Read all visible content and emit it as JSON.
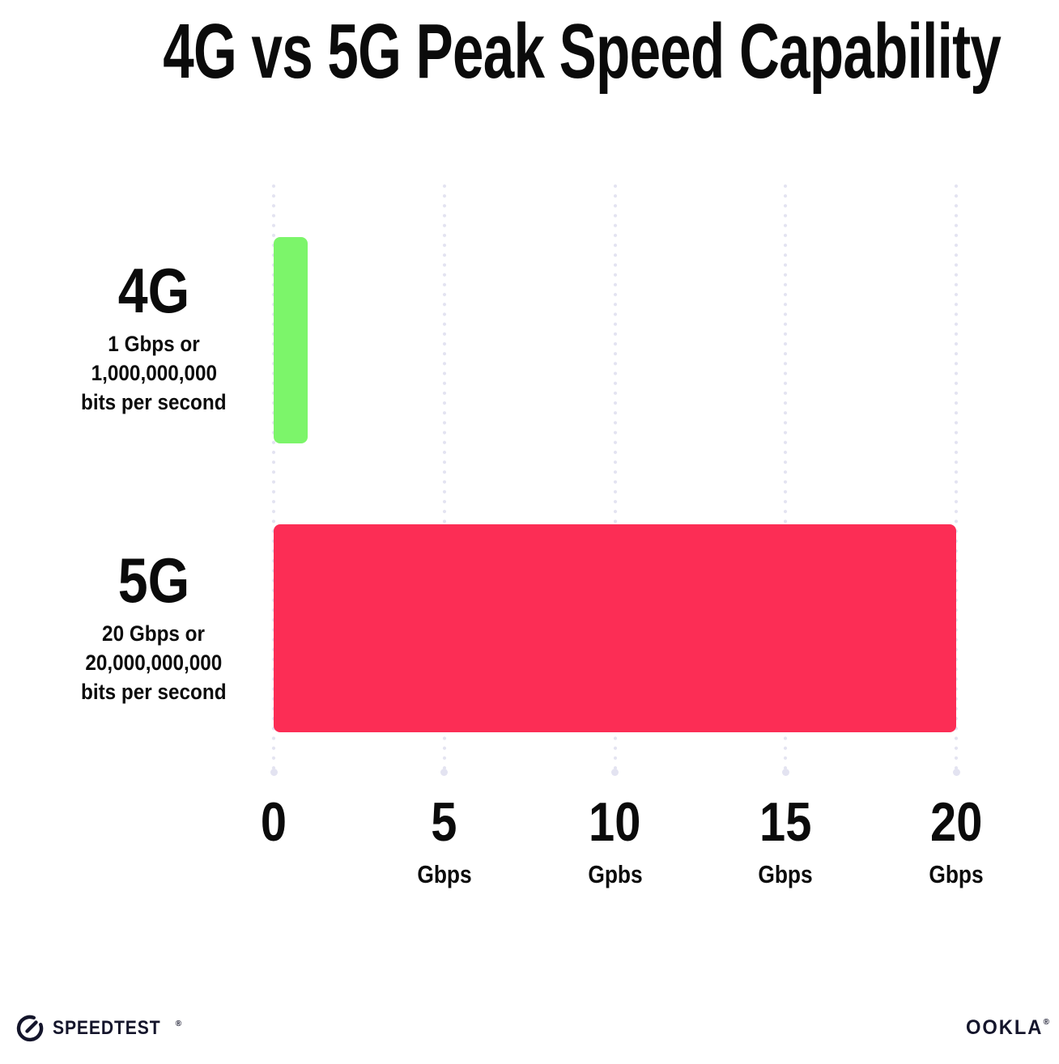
{
  "title": "4G vs 5G Peak Speed Capability",
  "chart_data": {
    "type": "bar",
    "orientation": "horizontal",
    "title": "4G vs 5G Peak Speed Capability",
    "categories": [
      "4G",
      "5G"
    ],
    "values": [
      1,
      20
    ],
    "xlabel_unit": "Gbps",
    "xlim": [
      0,
      20
    ],
    "grid": "dotted vertical gridlines at each tick",
    "legend": "none",
    "series": [
      {
        "name": "4G",
        "value": 1,
        "color": "#7CF56A",
        "sublabel": [
          "1 Gbps or",
          "1,000,000,000",
          "bits per second"
        ]
      },
      {
        "name": "5G",
        "value": 20,
        "color": "#FC2D55",
        "sublabel": [
          "20 Gbps or",
          "20,000,000,000",
          "bits per second"
        ]
      }
    ],
    "x_ticks": [
      {
        "value": 0,
        "label": "0",
        "unit": ""
      },
      {
        "value": 5,
        "label": "5",
        "unit": "Gbps"
      },
      {
        "value": 10,
        "label": "10",
        "unit": "Gpbs"
      },
      {
        "value": 15,
        "label": "15",
        "unit": "Gbps"
      },
      {
        "value": 20,
        "label": "20",
        "unit": "Gbps"
      }
    ]
  },
  "footer": {
    "speedtest_label": "SPEEDTEST",
    "speedtest_trademark": "®",
    "ookla_label": "OOKLA",
    "ookla_trademark": "®"
  },
  "colors": {
    "bar_4g": "#7CF56A",
    "bar_5g": "#FC2D55",
    "gridline_dots": "#E3E3F1",
    "text": "#0B0B0B",
    "logo": "#14152B",
    "background": "#FFFFFF"
  }
}
